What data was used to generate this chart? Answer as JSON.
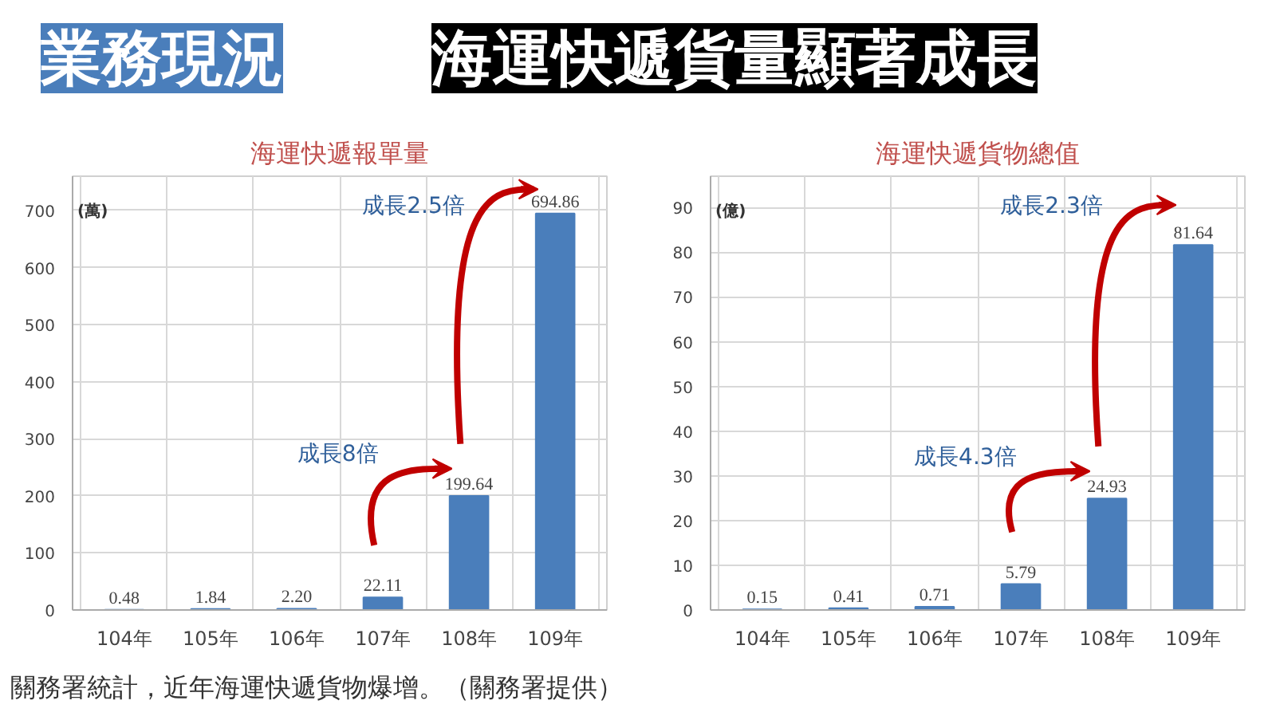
{
  "chart_data": [
    {
      "type": "other",
      "title": "業務現況",
      "subtitle": "海運快遞貨量顯著成長"
    },
    {
      "type": "bar",
      "title": "海運快遞報單量",
      "ylabel": "(萬)",
      "categories": [
        "104年",
        "105年",
        "106年",
        "107年",
        "108年",
        "109年"
      ],
      "values": [
        0.48,
        1.84,
        2.2,
        22.11,
        199.64,
        694.86
      ],
      "color": "#4a7ebb",
      "ylim": [
        0,
        760
      ],
      "yticks": [
        0,
        100,
        200,
        300,
        400,
        500,
        600,
        700
      ],
      "grid": true,
      "data_labels": true,
      "value_labels": [
        "0.48",
        "1.84",
        "2.20",
        "22.11",
        "199.64",
        "694.86"
      ],
      "annotations": [
        "成長8倍",
        "成長2.5倍"
      ]
    },
    {
      "type": "bar",
      "title": "海運快遞貨物總值",
      "ylabel": "(億)",
      "categories": [
        "104年",
        "105年",
        "106年",
        "107年",
        "108年",
        "109年"
      ],
      "values": [
        0.15,
        0.41,
        0.71,
        5.79,
        24.93,
        81.64
      ],
      "color": "#4a7ebb",
      "ylim": [
        0,
        97
      ],
      "yticks": [
        0,
        10,
        20,
        30,
        40,
        50,
        60,
        70,
        80,
        90
      ],
      "grid": true,
      "data_labels": true,
      "annotations": [
        "成長4.3倍",
        "成長2.3倍"
      ]
    },
    {
      "type": "other",
      "annotations": [
        "關務署統計，近年海運快遞貨物爆增。（關務署提供）"
      ]
    }
  ]
}
